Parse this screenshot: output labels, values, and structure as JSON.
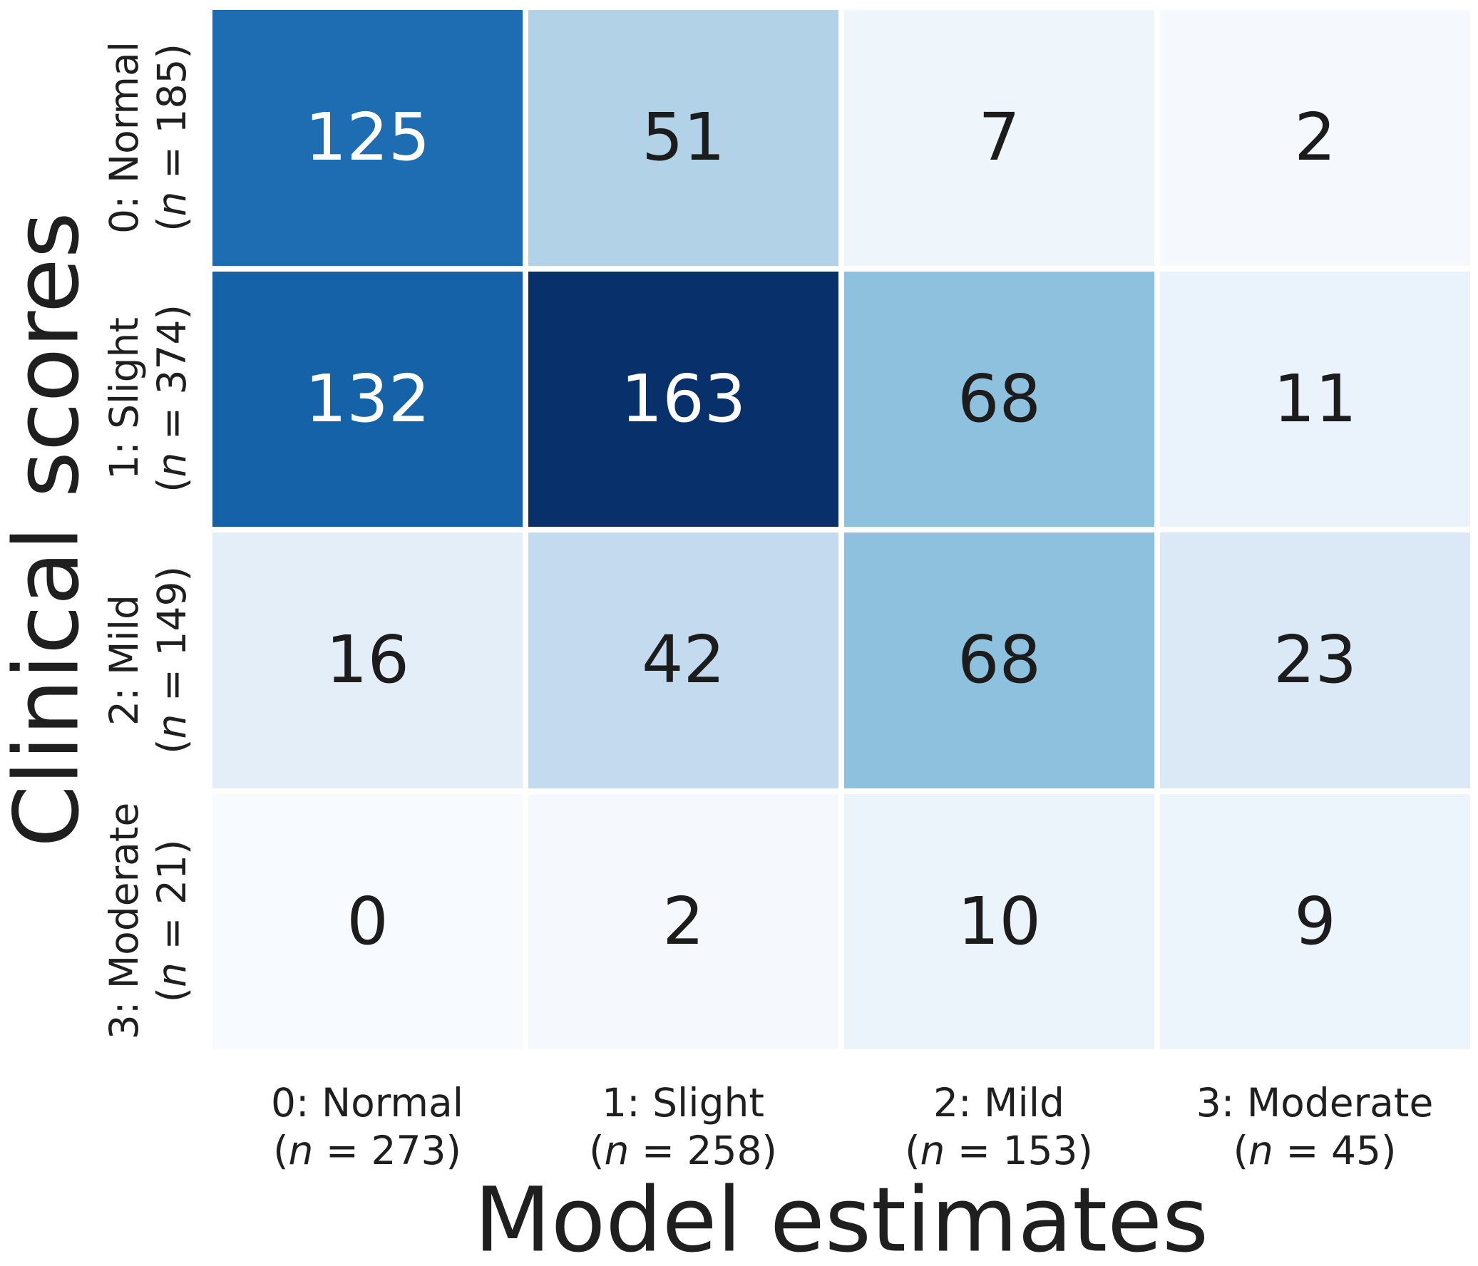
{
  "chart_data": {
    "type": "heatmap",
    "title": "",
    "xlabel": "Model estimates",
    "ylabel": "Clinical scores",
    "n_symbol": "n",
    "count_open": "(",
    "count_equals": " = ",
    "count_close": ")",
    "rows": [
      {
        "label": "0: Normal",
        "n": "185"
      },
      {
        "label": "1: Slight",
        "n": "374"
      },
      {
        "label": "2: Mild",
        "n": "149"
      },
      {
        "label": "3: Moderate",
        "n": "21"
      }
    ],
    "cols": [
      {
        "label": "0: Normal",
        "n": "273"
      },
      {
        "label": "1: Slight",
        "n": "258"
      },
      {
        "label": "2: Mild",
        "n": "153"
      },
      {
        "label": "3: Moderate",
        "n": "45"
      }
    ],
    "values": [
      [
        125,
        51,
        7,
        2
      ],
      [
        132,
        163,
        68,
        11
      ],
      [
        16,
        42,
        68,
        23
      ],
      [
        0,
        2,
        10,
        9
      ]
    ],
    "colormap": "Blues",
    "vmin": 0,
    "vmax": 163,
    "grid_on": false,
    "legend_position": "none",
    "background": "#ffffff",
    "cell_colors": [
      [
        "#1e6db2",
        "#b2d2e8",
        "#eef6fc",
        "#f5f9fe"
      ],
      [
        "#1562a9",
        "#08306b",
        "#8dc1dd",
        "#eaf2fb"
      ],
      [
        "#e3eef9",
        "#c4daee",
        "#8dc1dd",
        "#dbe9f6"
      ],
      [
        "#f7fbff",
        "#f5f9fe",
        "#ebf3fb",
        "#ecf4fc"
      ]
    ],
    "text_colors": [
      [
        "#ffffff",
        "#1c1c1c",
        "#1c1c1c",
        "#1c1c1c"
      ],
      [
        "#ffffff",
        "#ffffff",
        "#1c1c1c",
        "#1c1c1c"
      ],
      [
        "#1c1c1c",
        "#1c1c1c",
        "#1c1c1c",
        "#1c1c1c"
      ],
      [
        "#1c1c1c",
        "#1c1c1c",
        "#1c1c1c",
        "#1c1c1c"
      ]
    ]
  }
}
